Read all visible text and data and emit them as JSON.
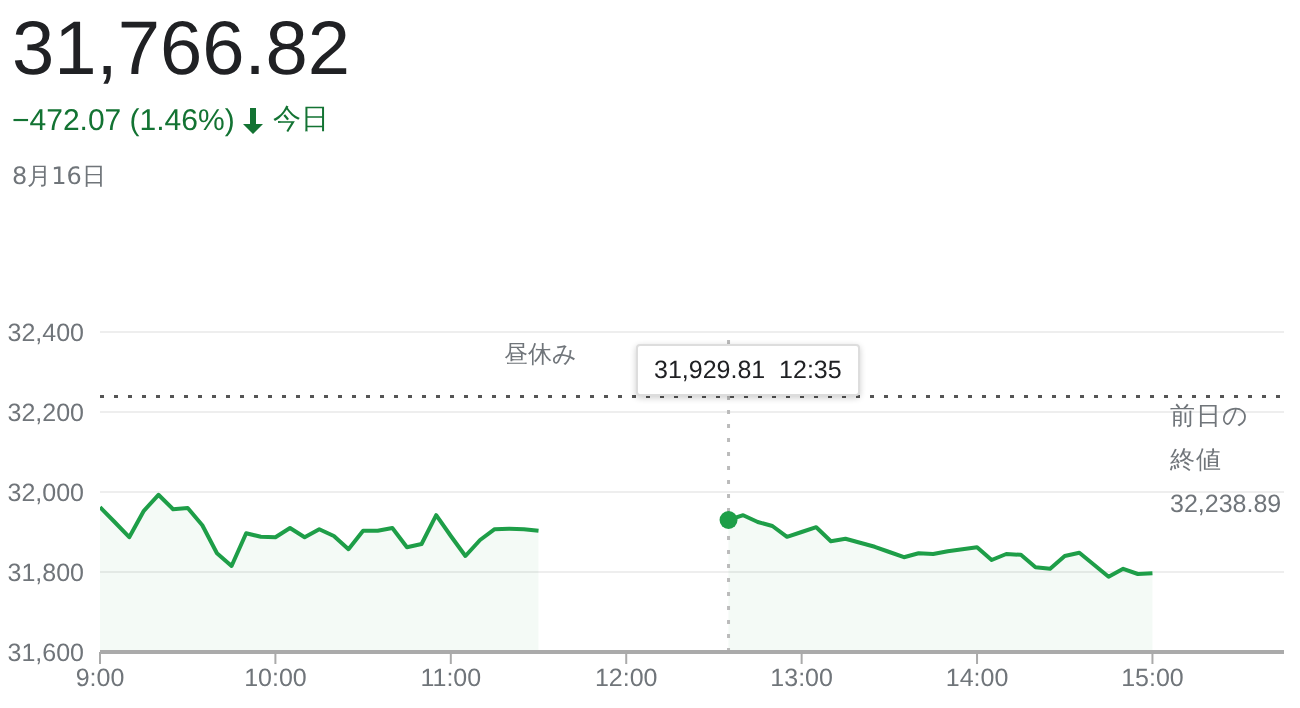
{
  "chart_data": {
    "type": "area",
    "title": "31,766.82",
    "subtitle": "−472.07 (1.46%)",
    "annotations": [
      "今日",
      "8月16日",
      "昼休み",
      "31,929.81  12:35",
      "32,238.89"
    ],
    "series": [
      {
        "color": "#1e9e48",
        "x": [
          9,
          9.0833,
          9.1667,
          9.25,
          9.3333,
          9.4167,
          9.5,
          9.5833,
          9.6667,
          9.75,
          9.8333,
          9.9167,
          10,
          10.0833,
          10.1667,
          10.25,
          10.3333,
          10.4167,
          10.5,
          10.5833,
          10.6667,
          10.75,
          10.8333,
          10.9167,
          11,
          11.0833,
          11.1667,
          11.25,
          11.3333,
          11.4167,
          11.5
        ],
        "values": [
          31962,
          31925,
          31887,
          31953,
          31993,
          31957,
          31960,
          31917,
          31847,
          31815,
          31897,
          31888,
          31887,
          31910,
          31887,
          31907,
          31890,
          31857,
          31903,
          31903,
          31910,
          31862,
          31870,
          31942,
          31890,
          31840,
          31880,
          31907,
          31908,
          31907,
          31903
        ]
      },
      {
        "color": "#1e9e48",
        "x": [
          12.5833,
          12.6667,
          12.75,
          12.8333,
          12.9167,
          13,
          13.0833,
          13.1667,
          13.25,
          13.3333,
          13.4167,
          13.5,
          13.5833,
          13.6667,
          13.75,
          13.8333,
          13.9167,
          14,
          14.0833,
          14.1667,
          14.25,
          14.3333,
          14.4167,
          14.5,
          14.5833,
          14.6667,
          14.75,
          14.8333,
          14.9167,
          15
        ],
        "values": [
          31930,
          31942,
          31925,
          31915,
          31888,
          31900,
          31912,
          31877,
          31883,
          31873,
          31863,
          31850,
          31837,
          31847,
          31845,
          31852,
          31857,
          31862,
          31830,
          31845,
          31843,
          31812,
          31808,
          31840,
          31848,
          31818,
          31788,
          31808,
          31795,
          31797
        ]
      }
    ],
    "xlim": [
      9,
      15.75
    ],
    "xticks": [
      {
        "value": 9,
        "label": "9:00"
      },
      {
        "value": 10,
        "label": "10:00"
      },
      {
        "value": 11,
        "label": "11:00"
      },
      {
        "value": 12,
        "label": "12:00"
      },
      {
        "value": 13,
        "label": "13:00"
      },
      {
        "value": 14,
        "label": "14:00"
      },
      {
        "value": 15,
        "label": "15:00"
      }
    ],
    "ylim": [
      31600,
      32400
    ],
    "yticks": [
      {
        "value": 31600,
        "label": "31,600"
      },
      {
        "value": 31800,
        "label": "31,800"
      },
      {
        "value": 32000,
        "label": "32,000"
      },
      {
        "value": 32200,
        "label": "32,200"
      },
      {
        "value": 32400,
        "label": "32,400"
      }
    ],
    "ref_lines": [
      {
        "axis": "y",
        "value": 32238.89,
        "label": "前日の終値",
        "color": "#555555",
        "line_style": "dotted"
      },
      {
        "axis": "x",
        "value": 12.5833,
        "color": "#bbbbbb",
        "line_style": "dotted"
      }
    ],
    "grid": "y",
    "legend": false,
    "marker": "none",
    "line_style": "solid"
  }
}
